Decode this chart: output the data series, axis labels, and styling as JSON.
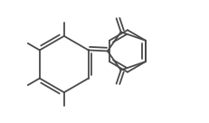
{
  "background_color": "#ffffff",
  "line_color": "#4a4a4a",
  "line_width": 1.3,
  "dbo": 0.018,
  "figsize": [
    2.32,
    1.36
  ],
  "dpi": 100
}
